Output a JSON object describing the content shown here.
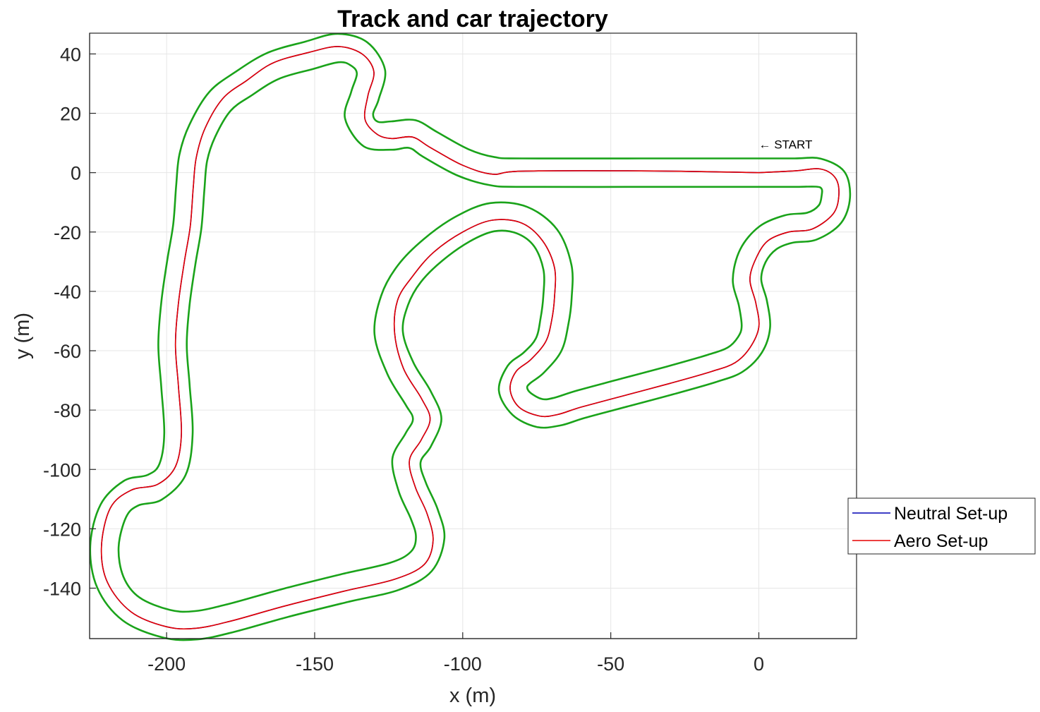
{
  "chart_data": {
    "type": "line",
    "title": "Track and car trajectory",
    "xlabel": "x (m)",
    "ylabel": "y (m)",
    "xlim": [
      -226,
      33
    ],
    "ylim": [
      -157,
      47
    ],
    "xticks": [
      -200,
      -150,
      -100,
      -50,
      0
    ],
    "yticks": [
      40,
      20,
      0,
      -20,
      -40,
      -60,
      -80,
      -100,
      -120,
      -140
    ],
    "xtick_labels": [
      "-200",
      "-150",
      "-100",
      "-50",
      "0"
    ],
    "ytick_labels": [
      "40",
      "20",
      "0",
      "-20",
      "-40",
      "-60",
      "-80",
      "-100",
      "-120",
      "-140"
    ],
    "grid": true,
    "legend_position": "right",
    "annotation": {
      "text": "← START",
      "x": 0,
      "y": 9.5
    },
    "track_color": "#1aa31a",
    "centerline": [
      [
        0,
        0
      ],
      [
        12,
        0
      ],
      [
        20,
        0
      ],
      [
        25,
        -2.5
      ],
      [
        26,
        -8
      ],
      [
        24,
        -14
      ],
      [
        18,
        -18
      ],
      [
        10,
        -19
      ],
      [
        3,
        -22
      ],
      [
        -2,
        -28
      ],
      [
        -4,
        -36
      ],
      [
        -2,
        -44
      ],
      [
        -1,
        -52
      ],
      [
        -3,
        -58
      ],
      [
        -8,
        -63
      ],
      [
        -16,
        -66
      ],
      [
        -30,
        -70
      ],
      [
        -45,
        -74
      ],
      [
        -60,
        -78
      ],
      [
        -68,
        -80.5
      ],
      [
        -74,
        -81
      ],
      [
        -80,
        -78
      ],
      [
        -83,
        -73
      ],
      [
        -81,
        -68
      ],
      [
        -76,
        -64
      ],
      [
        -71,
        -58
      ],
      [
        -69,
        -50
      ],
      [
        -68,
        -42
      ],
      [
        -68,
        -32
      ],
      [
        -72,
        -22
      ],
      [
        -80,
        -16
      ],
      [
        -90,
        -15
      ],
      [
        -100,
        -19
      ],
      [
        -110,
        -26
      ],
      [
        -118,
        -34
      ],
      [
        -123,
        -43
      ],
      [
        -125,
        -54
      ],
      [
        -121,
        -66
      ],
      [
        -115,
        -76
      ],
      [
        -112,
        -83
      ],
      [
        -115,
        -90
      ],
      [
        -119,
        -97
      ],
      [
        -117,
        -106
      ],
      [
        -113,
        -115
      ],
      [
        -111,
        -123
      ],
      [
        -114,
        -131
      ],
      [
        -123,
        -136
      ],
      [
        -140,
        -140
      ],
      [
        -160,
        -145
      ],
      [
        -178,
        -150
      ],
      [
        -190,
        -152.5
      ],
      [
        -200,
        -152
      ],
      [
        -212,
        -147
      ],
      [
        -219,
        -138
      ],
      [
        -221,
        -126
      ],
      [
        -218,
        -114
      ],
      [
        -212,
        -108
      ],
      [
        -204,
        -106
      ],
      [
        -198,
        -100
      ],
      [
        -196,
        -88
      ],
      [
        -197,
        -72
      ],
      [
        -198,
        -58
      ],
      [
        -197,
        -44
      ],
      [
        -195,
        -30
      ],
      [
        -193,
        -18
      ],
      [
        -192,
        -5
      ],
      [
        -191,
        5
      ],
      [
        -188,
        14
      ],
      [
        -182,
        24
      ],
      [
        -174,
        30
      ],
      [
        -164,
        36
      ],
      [
        -152,
        39.5
      ],
      [
        -142,
        42
      ],
      [
        -135,
        40
      ],
      [
        -131,
        34
      ],
      [
        -133,
        26
      ],
      [
        -135,
        19
      ],
      [
        -131,
        13
      ],
      [
        -124,
        12.5
      ],
      [
        -117,
        13
      ],
      [
        -111,
        9.5
      ],
      [
        -100,
        3.5
      ],
      [
        -90,
        0.5
      ],
      [
        -80,
        0
      ],
      [
        -40,
        0
      ],
      [
        0,
        0
      ]
    ],
    "series": [
      {
        "name": "Neutral Set-up",
        "color": "#0000b4",
        "points": [
          [
            0,
            0
          ],
          [
            12,
            0.6
          ],
          [
            21,
            1.2
          ],
          [
            26,
            -2
          ],
          [
            27,
            -8
          ],
          [
            25,
            -14
          ],
          [
            18,
            -19
          ],
          [
            10,
            -20
          ],
          [
            3,
            -23
          ],
          [
            -1,
            -29
          ],
          [
            -3,
            -36
          ],
          [
            -1,
            -44
          ],
          [
            0,
            -52
          ],
          [
            -3,
            -59
          ],
          [
            -8,
            -64
          ],
          [
            -16,
            -67
          ],
          [
            -30,
            -71
          ],
          [
            -45,
            -75
          ],
          [
            -60,
            -79
          ],
          [
            -68,
            -81.5
          ],
          [
            -74,
            -82
          ],
          [
            -81,
            -79
          ],
          [
            -84,
            -73
          ],
          [
            -82,
            -67
          ],
          [
            -77,
            -63
          ],
          [
            -72,
            -57
          ],
          [
            -70,
            -50
          ],
          [
            -69,
            -42
          ],
          [
            -69,
            -32
          ],
          [
            -73,
            -23
          ],
          [
            -80,
            -17
          ],
          [
            -90,
            -16
          ],
          [
            -100,
            -20
          ],
          [
            -110,
            -27
          ],
          [
            -117,
            -35
          ],
          [
            -122,
            -43
          ],
          [
            -123,
            -54
          ],
          [
            -120,
            -66
          ],
          [
            -114,
            -76
          ],
          [
            -111,
            -83
          ],
          [
            -114,
            -90
          ],
          [
            -118,
            -97
          ],
          [
            -116,
            -106
          ],
          [
            -112,
            -115
          ],
          [
            -110,
            -124
          ],
          [
            -113,
            -132
          ],
          [
            -123,
            -137
          ],
          [
            -140,
            -141
          ],
          [
            -160,
            -146
          ],
          [
            -178,
            -151
          ],
          [
            -190,
            -153.5
          ],
          [
            -200,
            -153
          ],
          [
            -212,
            -148
          ],
          [
            -220,
            -138
          ],
          [
            -222,
            -126
          ],
          [
            -219,
            -113
          ],
          [
            -212,
            -107
          ],
          [
            -203,
            -105
          ],
          [
            -197,
            -99
          ],
          [
            -195,
            -88
          ],
          [
            -196,
            -72
          ],
          [
            -197,
            -58
          ],
          [
            -196,
            -44
          ],
          [
            -194,
            -30
          ],
          [
            -192,
            -18
          ],
          [
            -191,
            -5
          ],
          [
            -190,
            5
          ],
          [
            -187,
            15
          ],
          [
            -181,
            25
          ],
          [
            -173,
            31
          ],
          [
            -164,
            37
          ],
          [
            -152,
            40.5
          ],
          [
            -142,
            42.5
          ],
          [
            -134,
            40
          ],
          [
            -130,
            34
          ],
          [
            -132,
            26
          ],
          [
            -133,
            18
          ],
          [
            -129,
            13
          ],
          [
            -124,
            11.5
          ],
          [
            -117,
            12
          ],
          [
            -111,
            8.5
          ],
          [
            -100,
            2.5
          ],
          [
            -90,
            -0.5
          ],
          [
            -80,
            0.5
          ],
          [
            -40,
            0.6
          ],
          [
            -10,
            0.2
          ],
          [
            0,
            0
          ]
        ]
      },
      {
        "name": "Aero Set-up",
        "color": "#e60000",
        "points": [
          [
            0,
            0
          ],
          [
            12,
            0.6
          ],
          [
            21,
            1.2
          ],
          [
            26,
            -2
          ],
          [
            27,
            -8
          ],
          [
            25,
            -14
          ],
          [
            18,
            -19
          ],
          [
            10,
            -20
          ],
          [
            3,
            -23
          ],
          [
            -1,
            -29
          ],
          [
            -3,
            -36
          ],
          [
            -1,
            -44
          ],
          [
            0,
            -52
          ],
          [
            -3,
            -59
          ],
          [
            -8,
            -64
          ],
          [
            -16,
            -67
          ],
          [
            -30,
            -71
          ],
          [
            -45,
            -75
          ],
          [
            -60,
            -79
          ],
          [
            -68,
            -81.5
          ],
          [
            -74,
            -82
          ],
          [
            -81,
            -79
          ],
          [
            -84,
            -73
          ],
          [
            -82,
            -67
          ],
          [
            -77,
            -63
          ],
          [
            -72,
            -57
          ],
          [
            -70,
            -50
          ],
          [
            -69,
            -42
          ],
          [
            -69,
            -32
          ],
          [
            -73,
            -23
          ],
          [
            -80,
            -17
          ],
          [
            -90,
            -16
          ],
          [
            -100,
            -20
          ],
          [
            -110,
            -27
          ],
          [
            -117,
            -35
          ],
          [
            -122,
            -43
          ],
          [
            -123,
            -54
          ],
          [
            -120,
            -66
          ],
          [
            -114,
            -76
          ],
          [
            -111,
            -83
          ],
          [
            -114,
            -90
          ],
          [
            -118,
            -97
          ],
          [
            -116,
            -106
          ],
          [
            -112,
            -115
          ],
          [
            -110,
            -124
          ],
          [
            -113,
            -132
          ],
          [
            -123,
            -137
          ],
          [
            -140,
            -141
          ],
          [
            -160,
            -146
          ],
          [
            -178,
            -151
          ],
          [
            -190,
            -153.5
          ],
          [
            -200,
            -153
          ],
          [
            -212,
            -148
          ],
          [
            -220,
            -138
          ],
          [
            -222,
            -126
          ],
          [
            -219,
            -113
          ],
          [
            -212,
            -107
          ],
          [
            -203,
            -105
          ],
          [
            -197,
            -99
          ],
          [
            -195,
            -88
          ],
          [
            -196,
            -72
          ],
          [
            -197,
            -58
          ],
          [
            -196,
            -44
          ],
          [
            -194,
            -30
          ],
          [
            -192,
            -18
          ],
          [
            -191,
            -5
          ],
          [
            -190,
            5
          ],
          [
            -187,
            15
          ],
          [
            -181,
            25
          ],
          [
            -173,
            31
          ],
          [
            -164,
            37
          ],
          [
            -152,
            40.5
          ],
          [
            -142,
            42.5
          ],
          [
            -134,
            40
          ],
          [
            -130,
            34
          ],
          [
            -132,
            26
          ],
          [
            -133,
            18
          ],
          [
            -129,
            13
          ],
          [
            -124,
            11.5
          ],
          [
            -117,
            12
          ],
          [
            -111,
            8.5
          ],
          [
            -100,
            2.5
          ],
          [
            -90,
            -0.5
          ],
          [
            -80,
            0.5
          ],
          [
            -40,
            0.6
          ],
          [
            -10,
            0.2
          ],
          [
            0,
            0
          ]
        ]
      }
    ]
  }
}
